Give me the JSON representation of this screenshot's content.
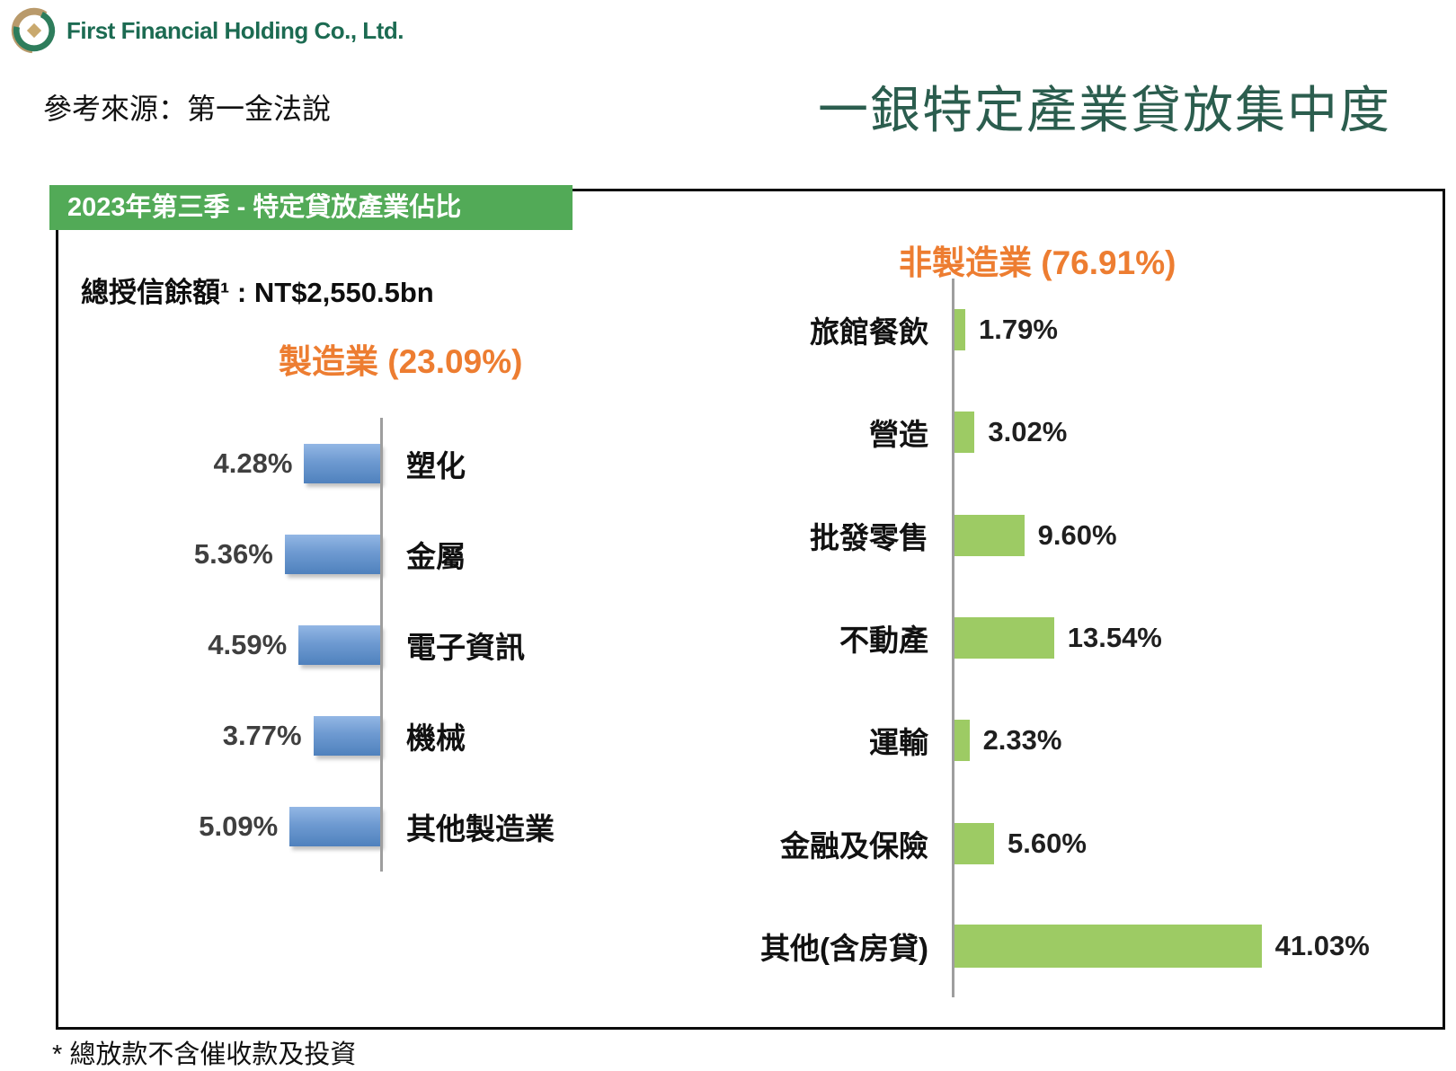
{
  "page": {
    "company_name": "First Financial Holding Co., Ltd.",
    "source_line": "參考來源：第一金法說",
    "main_title": "一銀特定產業貸放集中度",
    "banner_title": "2023年第三季 - 特定貸放產業佔比",
    "total_credit_label": "總授信餘額¹ : NT$2,550.5bn",
    "footnote": "* 總放款不含催收款及投資"
  },
  "colors": {
    "banner_green": "#52AA57",
    "bar_green": "#9DCB64",
    "bar_blue_top": "#93B7E5",
    "bar_blue_bottom": "#4F81BD",
    "accent_orange": "#ED7D31",
    "title_dark_green": "#2B5D4E",
    "logo_green": "#2E7D5C",
    "logo_gold": "#B99A6B",
    "axis_gray": "#9E9E9E"
  },
  "chart_data": [
    {
      "type": "bar",
      "orientation": "horizontal",
      "bar_direction": "left",
      "title": "製造業 (23.09%)",
      "group_name": "製造業",
      "group_share_pct": 23.09,
      "categories": [
        "塑化",
        "金屬",
        "電子資訊",
        "機械",
        "其他製造業"
      ],
      "values": [
        4.28,
        5.36,
        4.59,
        3.77,
        5.09
      ],
      "value_labels": [
        "4.28%",
        "5.36%",
        "4.59%",
        "3.77%",
        "5.09%"
      ],
      "unit": "percent",
      "grid": false,
      "bar_color": "blue-gradient"
    },
    {
      "type": "bar",
      "orientation": "horizontal",
      "bar_direction": "right",
      "title": "非製造業 (76.91%)",
      "group_name": "非製造業",
      "group_share_pct": 76.91,
      "categories": [
        "旅館餐飲",
        "營造",
        "批發零售",
        "不動產",
        "運輸",
        "金融及保險",
        "其他(含房貸)"
      ],
      "values": [
        1.79,
        3.02,
        9.6,
        13.54,
        2.33,
        5.6,
        41.03
      ],
      "value_labels": [
        "1.79%",
        "3.02%",
        "9.60%",
        "13.54%",
        "2.33%",
        "5.60%",
        "41.03%"
      ],
      "unit": "percent",
      "grid": false,
      "bar_color": "#9DCB64"
    }
  ]
}
